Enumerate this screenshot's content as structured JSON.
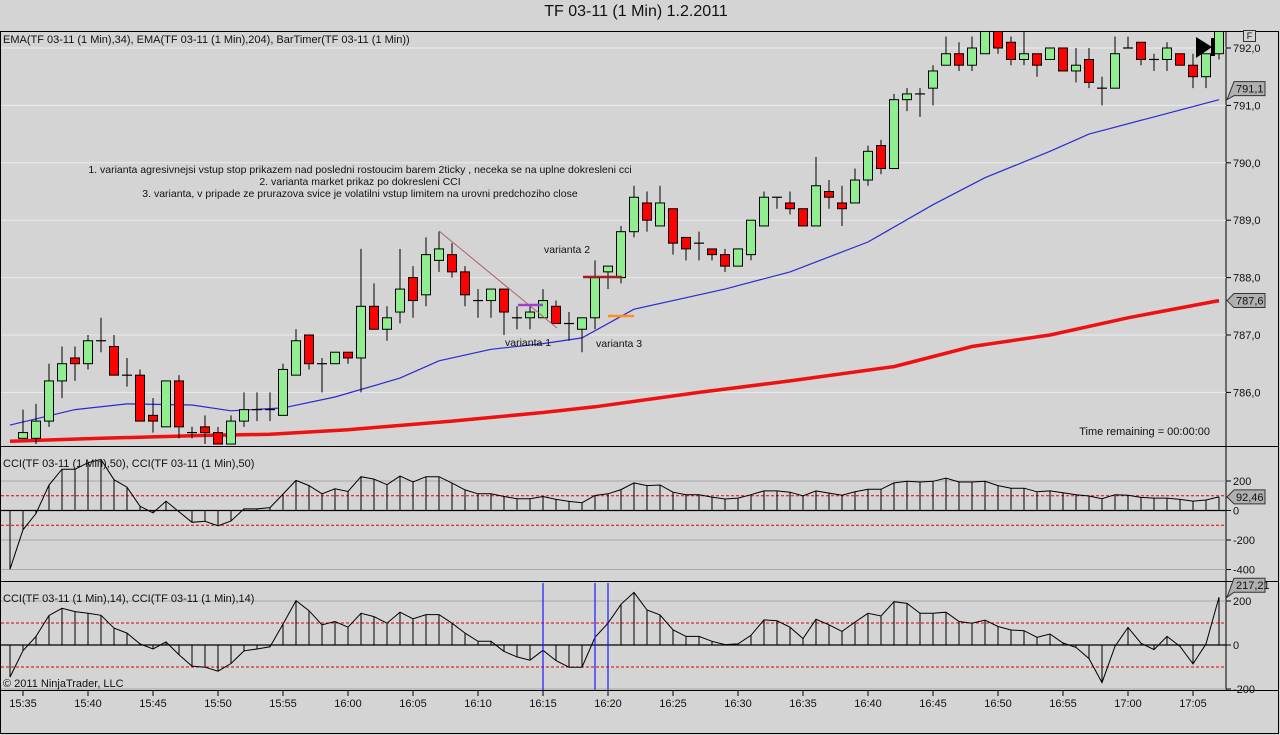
{
  "window_title": "TF 03-11 (1 Min)  1.2.2011",
  "colors": {
    "background": "#d4d4d4",
    "up": "#90ee90",
    "down": "#ff0000",
    "ema34": "#2a2ad0",
    "ema204": "#ee1111",
    "cci_zone": "#dd0000",
    "marker_lines": "#1a1aff"
  },
  "chart_data": [
    {
      "type": "candlestick",
      "title": "EMA(TF 03-11 (1 Min),34), EMA(TF 03-11 (1 Min),204), BarTimer(TF 03-11 (1 Min))",
      "ylim": [
        785.1,
        792.3
      ],
      "y_ticks": [
        "792,0",
        "791,0",
        "790,0",
        "789,0",
        "788,0",
        "787,0",
        "786,0"
      ],
      "y_tick_values": [
        792,
        791,
        790,
        789,
        788,
        787,
        786
      ],
      "first_bar_slot": 1,
      "ohlc": [
        [
          785.2,
          785.7,
          785.2,
          785.3
        ],
        [
          785.2,
          785.8,
          785.1,
          785.5
        ],
        [
          785.5,
          786.5,
          785.4,
          786.2
        ],
        [
          786.2,
          786.8,
          785.9,
          786.5
        ],
        [
          786.6,
          786.8,
          786.2,
          786.5
        ],
        [
          786.5,
          787.0,
          786.4,
          786.9
        ],
        [
          786.9,
          787.3,
          786.7,
          786.9
        ],
        [
          786.8,
          787.0,
          786.3,
          786.3
        ],
        [
          786.3,
          786.6,
          786.1,
          786.3
        ],
        [
          786.3,
          786.4,
          785.5,
          785.5
        ],
        [
          785.6,
          785.9,
          785.3,
          785.5
        ],
        [
          785.4,
          786.2,
          785.4,
          786.2
        ],
        [
          786.2,
          786.3,
          785.2,
          785.4
        ],
        [
          785.3,
          785.4,
          785.2,
          785.3
        ],
        [
          785.4,
          785.6,
          785.1,
          785.3
        ],
        [
          785.3,
          785.4,
          785.1,
          785.1
        ],
        [
          785.1,
          785.6,
          785.1,
          785.5
        ],
        [
          785.5,
          786.0,
          785.4,
          785.7
        ],
        [
          785.7,
          786.0,
          785.5,
          785.7
        ],
        [
          785.7,
          786.0,
          785.5,
          785.7
        ],
        [
          785.6,
          786.5,
          785.6,
          786.4
        ],
        [
          786.3,
          787.1,
          786.3,
          786.9
        ],
        [
          787.0,
          787.0,
          786.4,
          786.5
        ],
        [
          786.5,
          786.6,
          786.0,
          786.5
        ],
        [
          786.5,
          786.7,
          786.5,
          786.7
        ],
        [
          786.7,
          786.7,
          786.5,
          786.6
        ],
        [
          786.6,
          788.5,
          786.0,
          787.5
        ],
        [
          787.5,
          787.9,
          787.1,
          787.1
        ],
        [
          787.1,
          787.5,
          786.9,
          787.3
        ],
        [
          787.4,
          788.5,
          787.2,
          787.8
        ],
        [
          788.0,
          788.2,
          787.3,
          787.6
        ],
        [
          787.7,
          788.7,
          787.5,
          788.4
        ],
        [
          788.3,
          788.8,
          788.1,
          788.5
        ],
        [
          788.4,
          788.6,
          788.0,
          788.1
        ],
        [
          788.1,
          788.2,
          787.5,
          787.7
        ],
        [
          787.6,
          787.8,
          787.3,
          787.6
        ],
        [
          787.6,
          787.8,
          787.3,
          787.8
        ],
        [
          787.8,
          787.8,
          787.0,
          787.4
        ],
        [
          787.3,
          787.5,
          787.1,
          787.3
        ],
        [
          787.3,
          787.5,
          787.1,
          787.4
        ],
        [
          787.3,
          787.8,
          787.3,
          787.6
        ],
        [
          787.5,
          787.6,
          787.2,
          787.2
        ],
        [
          787.2,
          787.4,
          786.9,
          787.2
        ],
        [
          787.1,
          787.3,
          786.7,
          787.3
        ],
        [
          787.3,
          788.3,
          787.1,
          788.0
        ],
        [
          788.1,
          788.2,
          787.8,
          788.2
        ],
        [
          788.0,
          788.9,
          787.9,
          788.8
        ],
        [
          788.8,
          789.6,
          788.7,
          789.4
        ],
        [
          789.3,
          789.5,
          788.8,
          789.0
        ],
        [
          788.9,
          789.6,
          788.9,
          789.3
        ],
        [
          789.2,
          789.2,
          788.4,
          788.6
        ],
        [
          788.7,
          788.7,
          788.3,
          788.5
        ],
        [
          788.6,
          788.8,
          788.3,
          788.6
        ],
        [
          788.5,
          788.5,
          788.3,
          788.4
        ],
        [
          788.4,
          788.5,
          788.1,
          788.2
        ],
        [
          788.2,
          788.5,
          788.2,
          788.5
        ],
        [
          788.4,
          789.0,
          788.3,
          789.0
        ],
        [
          788.9,
          789.5,
          788.9,
          789.4
        ],
        [
          789.4,
          789.4,
          789.2,
          789.4
        ],
        [
          789.3,
          789.5,
          789.1,
          789.2
        ],
        [
          789.2,
          789.2,
          788.9,
          788.9
        ],
        [
          788.9,
          790.1,
          788.9,
          789.6
        ],
        [
          789.5,
          789.7,
          789.2,
          789.4
        ],
        [
          789.3,
          789.6,
          788.9,
          789.2
        ],
        [
          789.3,
          789.9,
          789.3,
          789.7
        ],
        [
          789.7,
          790.3,
          789.6,
          790.2
        ],
        [
          790.3,
          790.4,
          789.8,
          789.9
        ],
        [
          789.9,
          791.2,
          789.9,
          791.1
        ],
        [
          791.1,
          791.3,
          790.9,
          791.2
        ],
        [
          791.2,
          791.3,
          790.8,
          791.2
        ],
        [
          791.3,
          791.7,
          791.0,
          791.6
        ],
        [
          791.7,
          792.2,
          791.7,
          791.9
        ],
        [
          791.9,
          792.1,
          791.6,
          791.7
        ],
        [
          791.7,
          792.2,
          791.6,
          792.0
        ],
        [
          791.9,
          792.3,
          791.9,
          792.3
        ],
        [
          792.3,
          792.3,
          791.9,
          792.0
        ],
        [
          792.1,
          792.2,
          791.7,
          791.8
        ],
        [
          791.8,
          792.3,
          791.7,
          791.9
        ],
        [
          791.9,
          791.9,
          791.5,
          791.7
        ],
        [
          791.8,
          792.0,
          791.8,
          792.0
        ],
        [
          792.0,
          792.0,
          791.6,
          791.6
        ],
        [
          791.6,
          792.0,
          791.4,
          791.7
        ],
        [
          791.8,
          792.0,
          791.3,
          791.4
        ],
        [
          791.3,
          791.5,
          791.0,
          791.3
        ],
        [
          791.3,
          792.2,
          791.3,
          791.9
        ],
        [
          792.0,
          792.2,
          792.0,
          792.0
        ],
        [
          792.1,
          792.1,
          791.7,
          791.8
        ],
        [
          791.8,
          791.9,
          791.6,
          791.8
        ],
        [
          791.8,
          792.1,
          791.6,
          792.0
        ],
        [
          791.9,
          791.9,
          791.7,
          791.7
        ],
        [
          791.7,
          791.9,
          791.3,
          791.5
        ],
        [
          791.5,
          791.9,
          791.3,
          791.9
        ],
        [
          791.9,
          792.3,
          791.8,
          792.3
        ]
      ],
      "ema34_knots": [
        [
          0,
          785.43
        ],
        [
          5,
          785.7
        ],
        [
          9,
          785.8
        ],
        [
          14,
          785.78
        ],
        [
          17,
          785.68
        ],
        [
          21,
          785.73
        ],
        [
          25,
          785.92
        ],
        [
          30,
          786.25
        ],
        [
          33,
          786.55
        ],
        [
          37,
          786.75
        ],
        [
          41,
          786.85
        ],
        [
          44,
          786.95
        ],
        [
          48,
          787.45
        ],
        [
          53,
          787.7
        ],
        [
          55,
          787.8
        ],
        [
          60,
          788.1
        ],
        [
          66,
          788.62
        ],
        [
          71,
          789.27
        ],
        [
          75,
          789.74
        ],
        [
          80,
          790.2
        ],
        [
          83,
          790.5
        ],
        [
          88,
          790.8
        ],
        [
          93,
          791.1
        ]
      ],
      "ema204_knots": [
        [
          0,
          785.15
        ],
        [
          7,
          785.2
        ],
        [
          15,
          785.25
        ],
        [
          20,
          785.27
        ],
        [
          26,
          785.35
        ],
        [
          34,
          785.5
        ],
        [
          41,
          785.65
        ],
        [
          45,
          785.75
        ],
        [
          53,
          786.0
        ],
        [
          60,
          786.2
        ],
        [
          68,
          786.45
        ],
        [
          74,
          786.8
        ],
        [
          80,
          787.0
        ],
        [
          86,
          787.3
        ],
        [
          93,
          787.6
        ]
      ],
      "ema34_last_label": "791,1",
      "ema204_last_label": "787,6",
      "annotations": {
        "note_line1": "1. varianta agresivnejsi vstup stop prikazem nad posledni rostoucim barem  2ticky , neceka se na uplne dokresleni cci",
        "note_line2": "2. varianta market prikaz po dokresleni CCI",
        "note_line3": "3. varianta, v pripade ze prurazova svice je volatilni vstup limitem na urovni predchoziho close",
        "varianta1": "varianta 1",
        "varianta2": "varianta 2",
        "varianta3": "varianta 3"
      },
      "bar_timer": "Time remaining = 00:00:00",
      "f_button": "F"
    },
    {
      "type": "line+histogram",
      "title": "CCI(TF 03-11 (1 Min),50), CCI(TF 03-11 (1 Min),50)",
      "ylim": [
        -420,
        330
      ],
      "y_ticks": [
        "200",
        "0",
        "-200",
        "-400"
      ],
      "y_tick_values": [
        200,
        0,
        -200,
        -400
      ],
      "levels": [
        100,
        -100
      ],
      "values": [
        -398,
        -131,
        -20,
        173,
        280,
        280,
        324,
        346,
        209,
        158,
        29,
        -16,
        64,
        -9,
        -80,
        -73,
        -104,
        -71,
        11,
        11,
        20,
        111,
        204,
        169,
        113,
        147,
        129,
        229,
        213,
        175,
        233,
        193,
        229,
        229,
        186,
        140,
        113,
        113,
        95,
        80,
        80,
        95,
        75,
        62,
        53,
        102,
        113,
        142,
        187,
        169,
        173,
        124,
        107,
        107,
        91,
        78,
        84,
        107,
        133,
        133,
        124,
        100,
        133,
        118,
        104,
        127,
        144,
        144,
        187,
        198,
        193,
        198,
        220,
        193,
        193,
        198,
        169,
        151,
        151,
        127,
        133,
        120,
        107,
        98,
        80,
        107,
        104,
        89,
        84,
        84,
        75,
        64,
        71,
        92.46
      ],
      "last_label": "92,46"
    },
    {
      "type": "line+histogram",
      "title": "CCI(TF 03-11 (1 Min),14), CCI(TF 03-11 (1 Min),14)",
      "ylim": [
        -200,
        250
      ],
      "y_ticks": [
        "200",
        "0",
        "-200"
      ],
      "y_tick_values": [
        200,
        0,
        -200
      ],
      "levels": [
        100,
        -100
      ],
      "values": [
        -146,
        -26,
        39,
        134,
        167,
        152,
        144,
        135,
        77,
        54,
        5,
        -18,
        14,
        -44,
        -96,
        -101,
        -119,
        -84,
        -27,
        -18,
        -8,
        95,
        202,
        156,
        92,
        107,
        81,
        144,
        129,
        99,
        149,
        119,
        138,
        138,
        99,
        54,
        17,
        17,
        -29,
        -54,
        -69,
        -24,
        -71,
        -101,
        -101,
        35,
        99,
        185,
        239,
        159,
        137,
        69,
        39,
        39,
        17,
        2,
        5,
        44,
        114,
        110,
        81,
        29,
        117,
        92,
        62,
        104,
        144,
        132,
        197,
        189,
        144,
        144,
        149,
        107,
        99,
        113,
        84,
        68,
        65,
        35,
        50,
        9,
        -11,
        -62,
        -171,
        -6,
        80,
        8,
        -21,
        39,
        -6,
        -86,
        5,
        217.21
      ],
      "vertical_marker_slots": [
        41,
        45,
        46
      ],
      "last_label": "217,21",
      "copyright": "© 2011 NinjaTrader, LLC"
    }
  ],
  "time_axis": {
    "labels": [
      "15:35",
      "15:40",
      "15:45",
      "15:50",
      "15:55",
      "16:00",
      "16:05",
      "16:10",
      "16:15",
      "16:20",
      "16:25",
      "16:30",
      "16:35",
      "16:40",
      "16:45",
      "16:50",
      "16:55",
      "17:00",
      "17:05"
    ],
    "first_label_slot": 1,
    "slots_per_label": 5
  }
}
